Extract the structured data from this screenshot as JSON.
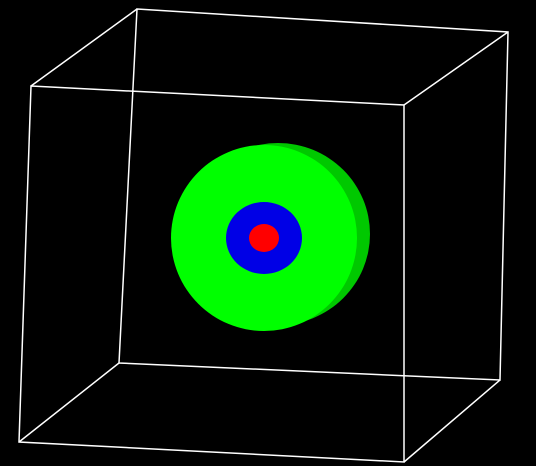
{
  "scene": {
    "background_color": "#000000",
    "frame_color": "#ffffff",
    "box_edge_color": "#ffffff",
    "objects": [
      {
        "name": "outer-disc",
        "shape": "cylinder-disc",
        "color": "#00ff00",
        "shade_color": "#00c800"
      },
      {
        "name": "middle-ring",
        "shape": "disc",
        "color": "#0000e6"
      },
      {
        "name": "inner-core",
        "shape": "disc",
        "color": "#ff0000"
      }
    ]
  }
}
